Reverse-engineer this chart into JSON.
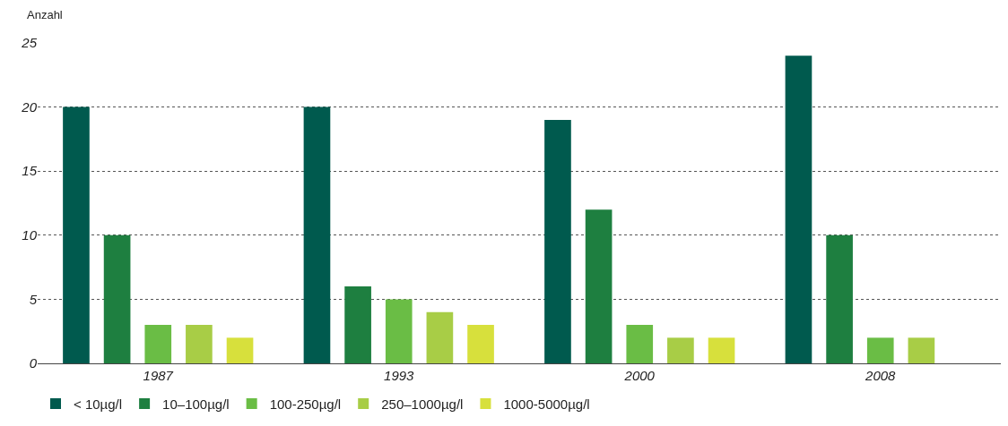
{
  "chart_data": {
    "type": "bar",
    "ylabel": "Anzahl",
    "categories": [
      "1987",
      "1993",
      "2000",
      "2008"
    ],
    "series": [
      {
        "name": "< 10µg/l",
        "color": "#005a4e",
        "values": [
          20,
          20,
          19,
          24
        ]
      },
      {
        "name": "10–100µg/l",
        "color": "#1e7f40",
        "values": [
          10,
          6,
          12,
          10
        ]
      },
      {
        "name": "100-250µg/l",
        "color": "#6abd45",
        "values": [
          3,
          5,
          3,
          2
        ]
      },
      {
        "name": "250–1000µg/l",
        "color": "#a8cd46",
        "values": [
          3,
          4,
          2,
          2
        ]
      },
      {
        "name": "1000-5000µg/l",
        "color": "#d7e03c",
        "values": [
          2,
          3,
          2,
          0
        ]
      }
    ],
    "ylim": [
      0,
      25
    ],
    "yticks": [
      0,
      5,
      10,
      15,
      20,
      25
    ],
    "grid": "y",
    "legend": "bottom"
  }
}
